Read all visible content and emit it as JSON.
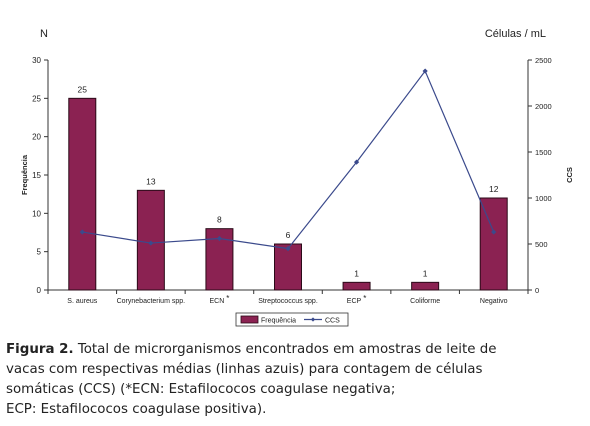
{
  "chart_data": {
    "type": "bar+line",
    "categories": [
      "S. aureus",
      "Corynebacterium spp.",
      "ECN",
      "Streptococcus spp.",
      "ECP",
      "Coliforme",
      "Negativo"
    ],
    "category_marks": [
      "",
      "",
      "*",
      "",
      "*",
      "",
      ""
    ],
    "series": [
      {
        "name": "Frequência",
        "type": "bar",
        "axis": "left",
        "color": "#8B2252",
        "values": [
          25,
          13,
          8,
          6,
          1,
          1,
          12
        ],
        "labels": [
          "25",
          "13",
          "8",
          "6",
          "1",
          "1",
          "12"
        ]
      },
      {
        "name": "CCS",
        "type": "line",
        "axis": "right",
        "color": "#3B4A8C",
        "values": [
          630,
          510,
          560,
          450,
          1390,
          2380,
          630
        ]
      }
    ],
    "y_left": {
      "title": "Frequência",
      "top_label": "N",
      "ylim": [
        0,
        30
      ],
      "ticks": [
        0,
        5,
        10,
        15,
        20,
        25,
        30
      ]
    },
    "y_right": {
      "title": "CCS",
      "top_label": "Células / mL",
      "ylim": [
        0,
        2500
      ],
      "ticks": [
        0,
        500,
        1000,
        1500,
        2000,
        2500
      ]
    },
    "legend": {
      "placement": "bottom-center"
    },
    "grid": false
  },
  "caption": {
    "label": "Figura 2.",
    "lines": [
      " Total de microrganismos encontrados em amostras de leite de",
      "vacas com respectivas médias (linhas azuis) para contagem de células",
      "somáticas (CCS) (*ECN: Estafilococos coagulase negativa;",
      "ECP: Estafilococos coagulase positiva)."
    ]
  }
}
